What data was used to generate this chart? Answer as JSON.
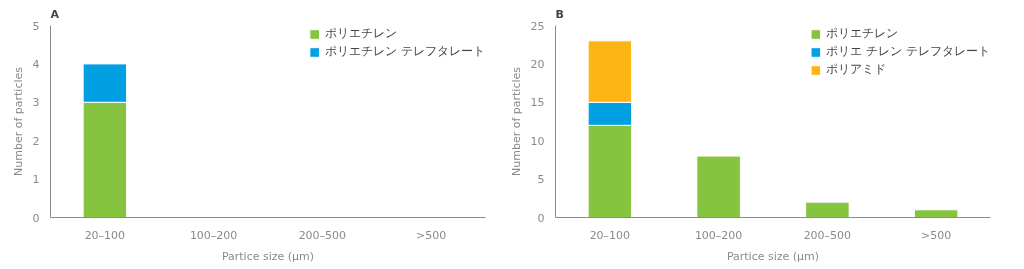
{
  "chart_data": [
    {
      "type": "bar",
      "title": "A",
      "xlabel": "Partice size (μm)",
      "ylabel": "Number of particles",
      "categories": [
        "20–100",
        "100–200",
        "200–500",
        ">500"
      ],
      "stacked": true,
      "ylim": [
        0,
        5
      ],
      "yticks": [
        0,
        1,
        2,
        3,
        4,
        5
      ],
      "grid": false,
      "legend": "top right",
      "series": [
        {
          "name": "ポリエチレン",
          "color": "#86c440",
          "values": [
            3,
            null,
            null,
            null
          ]
        },
        {
          "name": "ポリエチレン テレフタレート",
          "color": "#00a0e3",
          "values": [
            1,
            null,
            null,
            null
          ]
        }
      ]
    },
    {
      "type": "bar",
      "title": "B",
      "xlabel": "Partice size (μm)",
      "ylabel": "Number of particles",
      "categories": [
        "20–100",
        "100–200",
        "200–500",
        ">500"
      ],
      "stacked": true,
      "ylim": [
        0,
        25
      ],
      "yticks": [
        0,
        5,
        10,
        15,
        20,
        25
      ],
      "grid": false,
      "legend": "top right",
      "series": [
        {
          "name": "ポリエチレン",
          "color": "#86c440",
          "values": [
            12,
            8,
            2,
            1
          ]
        },
        {
          "name": "ポリエ チレン テレフタレート",
          "color": "#00a0e3",
          "values": [
            3,
            null,
            null,
            null
          ]
        },
        {
          "name": "ポリアミド",
          "color": "#fdb515",
          "values": [
            8,
            null,
            null,
            null
          ]
        }
      ]
    }
  ]
}
